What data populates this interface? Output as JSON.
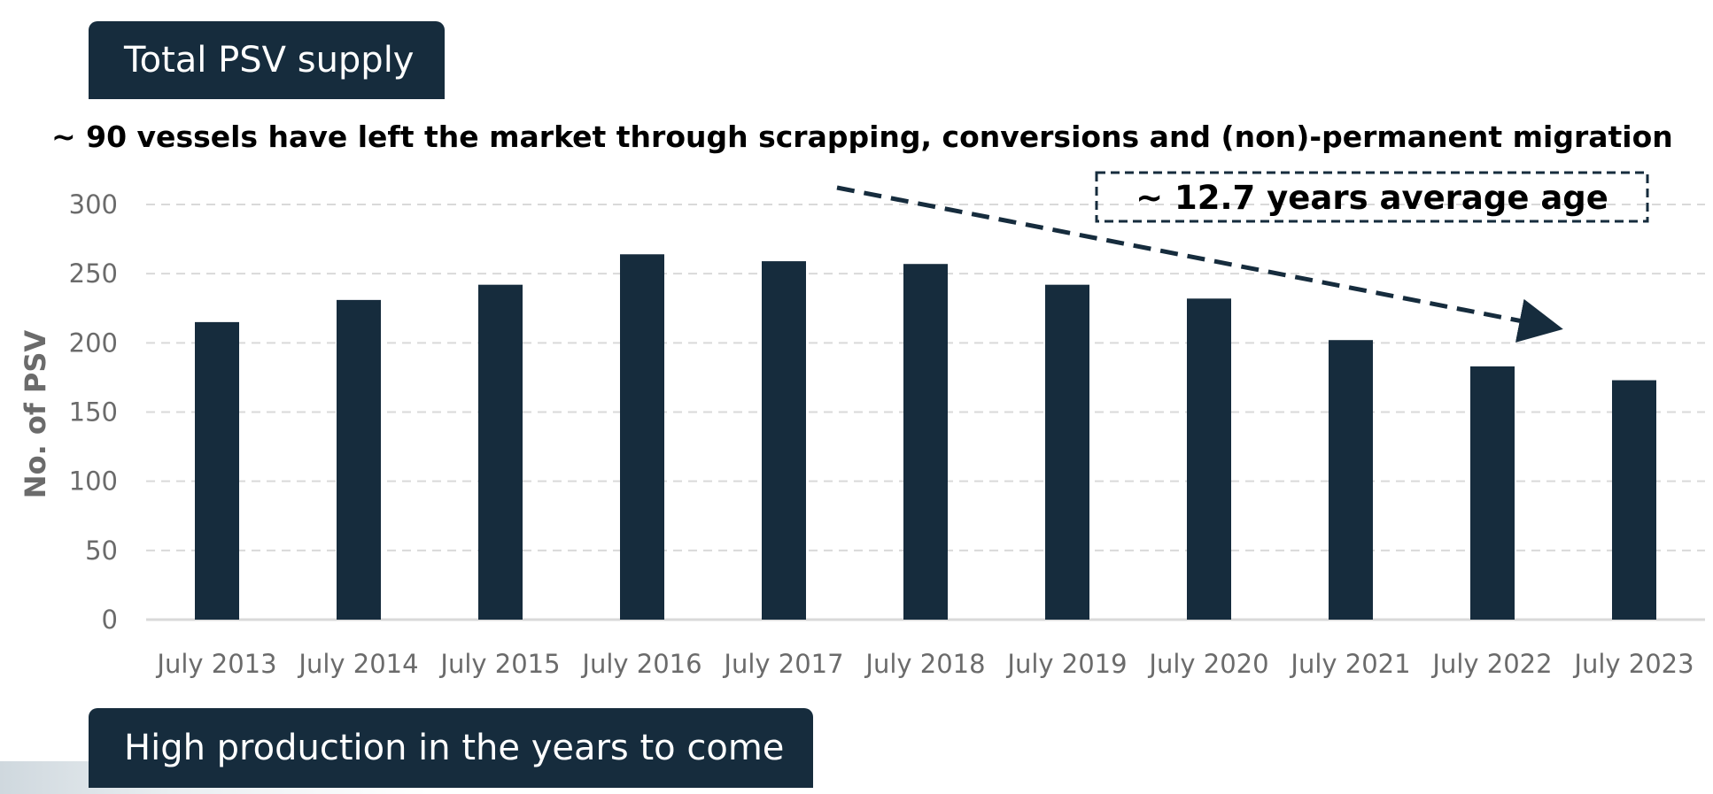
{
  "header_top": "Total PSV supply",
  "header_bottom": "High production in the years to come",
  "headline": "~ 90 vessels have left the market through scrapping, conversions and (non)-permanent migration",
  "annotation": "~ 12.7 years average age",
  "colors": {
    "bar": "#162c3d",
    "header_bg": "#162c3d",
    "grid": "#d9d9d9",
    "tick": "#6b6b6b"
  },
  "chart_data": {
    "type": "bar",
    "categories": [
      "July 2013",
      "July 2014",
      "July 2015",
      "July 2016",
      "July 2017",
      "July 2018",
      "July 2019",
      "July 2020",
      "July 2021",
      "July 2022",
      "July 2023"
    ],
    "values": [
      215,
      231,
      242,
      264,
      259,
      257,
      242,
      232,
      202,
      183,
      173
    ],
    "ylabel": "No. of PSV",
    "xlabel": "",
    "ylim": [
      0,
      300
    ],
    "yticks": [
      0,
      50,
      100,
      150,
      200,
      250,
      300
    ],
    "grid": true,
    "gridstyle": "dashed horizontal",
    "legend": "none"
  }
}
